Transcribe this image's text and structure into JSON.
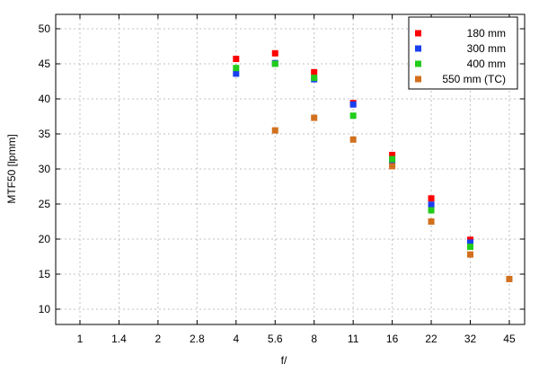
{
  "chart_data": {
    "type": "scatter",
    "title": "",
    "xlabel": "f/",
    "ylabel": "MTF50 [lpmm]",
    "categories": [
      "1",
      "1.4",
      "2",
      "2.8",
      "4",
      "5.6",
      "8",
      "11",
      "16",
      "22",
      "32",
      "45"
    ],
    "ylim": [
      8,
      52
    ],
    "yticks": [
      10,
      15,
      20,
      25,
      30,
      35,
      40,
      45,
      50
    ],
    "grid": true,
    "legend_position": "top-right",
    "series": [
      {
        "name": "180 mm",
        "color": "#ff0000",
        "values": [
          null,
          null,
          null,
          null,
          45.7,
          46.5,
          43.8,
          39.4,
          32.0,
          25.8,
          19.9,
          null
        ]
      },
      {
        "name": "300 mm",
        "color": "#1a3ff0",
        "values": [
          null,
          null,
          null,
          null,
          43.6,
          45.1,
          42.8,
          39.2,
          31.1,
          24.9,
          19.5,
          null
        ]
      },
      {
        "name": "400 mm",
        "color": "#22cc1a",
        "values": [
          null,
          null,
          null,
          null,
          44.4,
          45.0,
          43.0,
          37.6,
          31.4,
          24.1,
          18.9,
          null
        ]
      },
      {
        "name": "550 mm (TC)",
        "color": "#d2701e",
        "values": [
          null,
          null,
          null,
          null,
          null,
          35.5,
          37.3,
          34.2,
          30.4,
          22.5,
          17.8,
          14.3
        ]
      }
    ]
  }
}
